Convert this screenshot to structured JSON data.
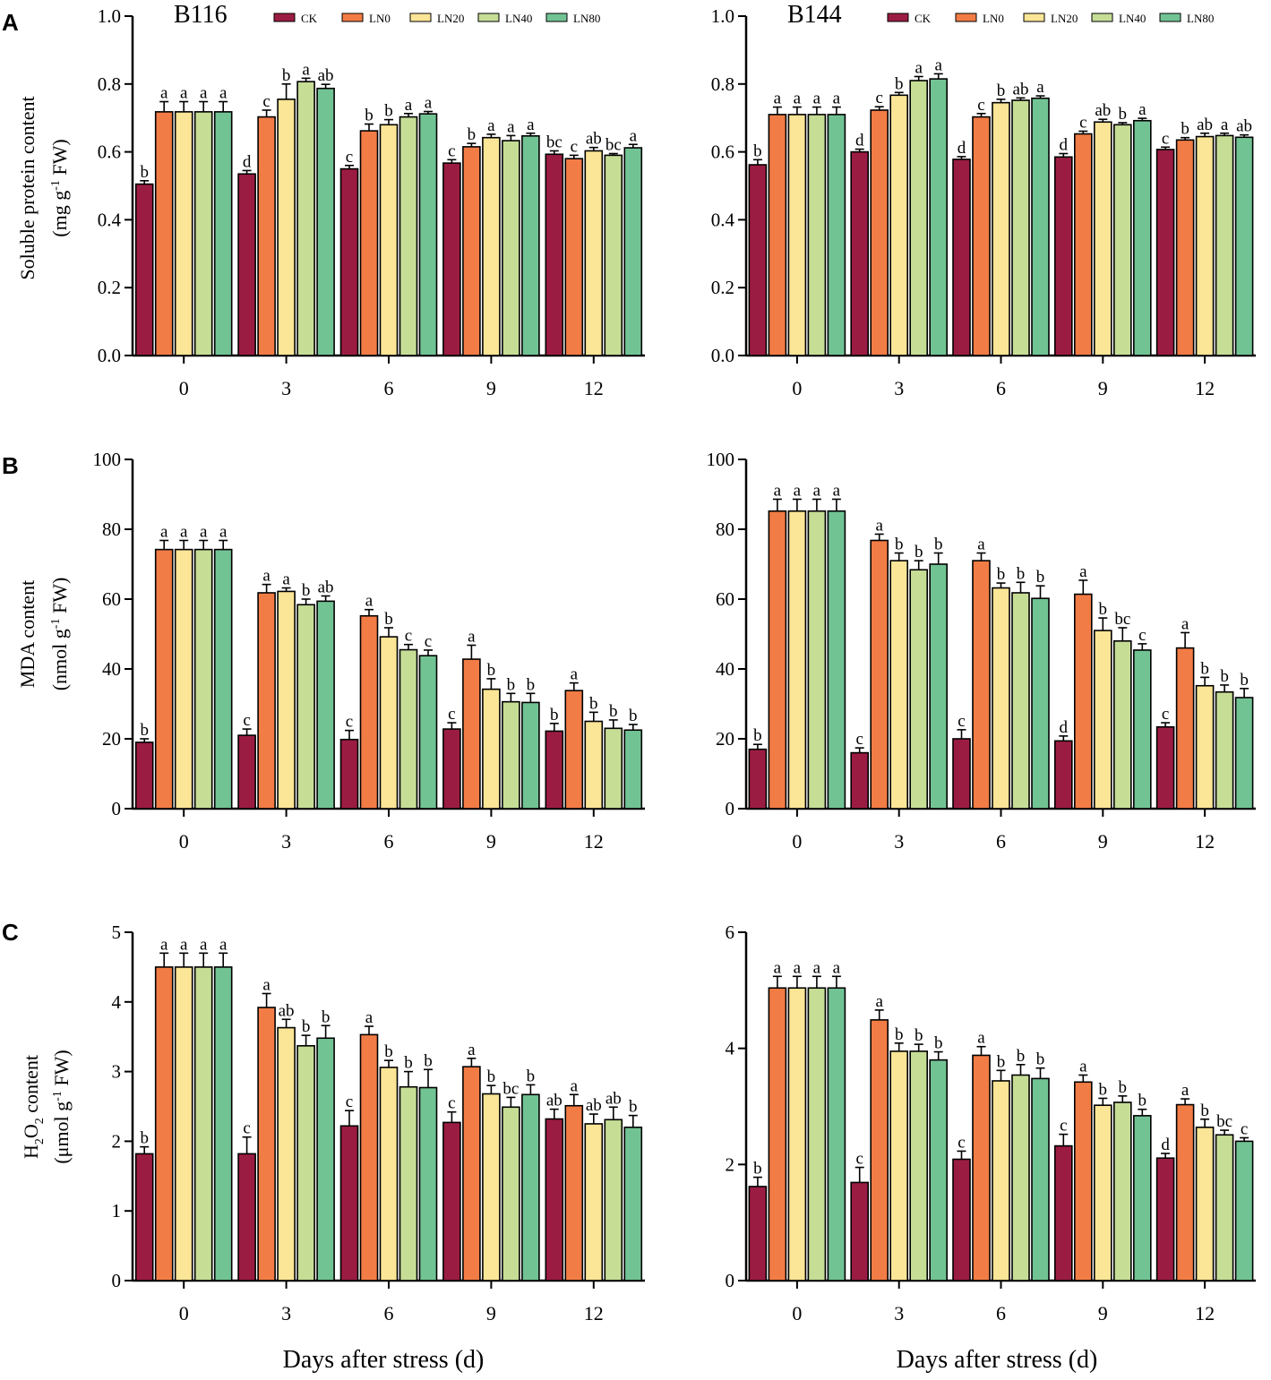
{
  "figure": {
    "xlabel": "Days after stress (d)",
    "series_names": [
      "CK",
      "LN0",
      "LN20",
      "LN40",
      "LN80"
    ],
    "series_colors": [
      "#9b1c42",
      "#f27c45",
      "#fbe596",
      "#c6dd96",
      "#72c394"
    ],
    "panel_letters": [
      "A",
      "B",
      "C"
    ],
    "ylabels": {
      "protein_1": "Soluble protein content",
      "protein_2_pre": "(mg g",
      "protein_2_sup": "-1",
      "protein_2_post": " FW)",
      "mda_1": "MDA content",
      "mda_2_pre": "(nmol g",
      "mda_2_sup": "-1",
      "mda_2_post": " FW)",
      "h2o2_1_a": "H",
      "h2o2_1_sub1": "2",
      "h2o2_1_b": "O",
      "h2o2_1_sub2": "2",
      "h2o2_1_c": " content",
      "h2o2_2_pre": "(μmol g",
      "h2o2_2_sup": "-1",
      "h2o2_2_post": " FW)"
    }
  },
  "chart_data": [
    {
      "id": "protein-b116",
      "type": "bar",
      "title": "B116",
      "legend": true,
      "categories": [
        "0",
        "3",
        "6",
        "9",
        "12"
      ],
      "ylim": [
        0,
        1.0
      ],
      "yticks": [
        "0.0",
        "0.2",
        "0.4",
        "0.6",
        "0.8",
        "1.0"
      ],
      "series": [
        {
          "name": "CK",
          "values": [
            0.505,
            0.535,
            0.55,
            0.567,
            0.593
          ],
          "errors": [
            0.01,
            0.01,
            0.01,
            0.01,
            0.01
          ],
          "letters": [
            "b",
            "d",
            "c",
            "c",
            "bc"
          ]
        },
        {
          "name": "LN0",
          "values": [
            0.718,
            0.703,
            0.662,
            0.615,
            0.58
          ],
          "errors": [
            0.03,
            0.02,
            0.02,
            0.01,
            0.01
          ],
          "letters": [
            "a",
            "c",
            "b",
            "b",
            "c"
          ]
        },
        {
          "name": "LN20",
          "values": [
            0.718,
            0.755,
            0.68,
            0.642,
            0.603
          ],
          "errors": [
            0.03,
            0.045,
            0.015,
            0.01,
            0.01
          ],
          "letters": [
            "a",
            "b",
            "b",
            "a",
            "ab"
          ]
        },
        {
          "name": "LN40",
          "values": [
            0.718,
            0.807,
            0.703,
            0.633,
            0.59
          ],
          "errors": [
            0.03,
            0.01,
            0.01,
            0.015,
            0.005
          ],
          "letters": [
            "a",
            "a",
            "a",
            "a",
            "bc"
          ]
        },
        {
          "name": "LN80",
          "values": [
            0.718,
            0.787,
            0.712,
            0.647,
            0.612
          ],
          "errors": [
            0.03,
            0.012,
            0.007,
            0.008,
            0.01
          ],
          "letters": [
            "a",
            "ab",
            "a",
            "a",
            "a"
          ]
        }
      ]
    },
    {
      "id": "protein-b144",
      "type": "bar",
      "title": "B144",
      "legend": true,
      "categories": [
        "0",
        "3",
        "6",
        "9",
        "12"
      ],
      "ylim": [
        0,
        1.0
      ],
      "yticks": [
        "0.0",
        "0.2",
        "0.4",
        "0.6",
        "0.8",
        "1.0"
      ],
      "series": [
        {
          "name": "CK",
          "values": [
            0.562,
            0.6,
            0.578,
            0.585,
            0.607
          ],
          "errors": [
            0.015,
            0.008,
            0.008,
            0.01,
            0.007
          ],
          "letters": [
            "b",
            "d",
            "d",
            "d",
            "c"
          ]
        },
        {
          "name": "LN0",
          "values": [
            0.71,
            0.723,
            0.703,
            0.653,
            0.635
          ],
          "errors": [
            0.022,
            0.01,
            0.01,
            0.008,
            0.007
          ],
          "letters": [
            "a",
            "c",
            "c",
            "c",
            "b"
          ]
        },
        {
          "name": "LN20",
          "values": [
            0.71,
            0.767,
            0.745,
            0.688,
            0.645
          ],
          "errors": [
            0.022,
            0.008,
            0.01,
            0.008,
            0.01
          ],
          "letters": [
            "a",
            "b",
            "b",
            "ab",
            "ab"
          ]
        },
        {
          "name": "LN40",
          "values": [
            0.71,
            0.81,
            0.752,
            0.68,
            0.648
          ],
          "errors": [
            0.022,
            0.012,
            0.007,
            0.006,
            0.007
          ],
          "letters": [
            "a",
            "a",
            "ab",
            "b",
            "a"
          ]
        },
        {
          "name": "LN80",
          "values": [
            0.71,
            0.815,
            0.758,
            0.692,
            0.643
          ],
          "errors": [
            0.022,
            0.015,
            0.007,
            0.007,
            0.007
          ],
          "letters": [
            "a",
            "a",
            "a",
            "a",
            "ab"
          ]
        }
      ]
    },
    {
      "id": "mda-b116",
      "type": "bar",
      "title": "",
      "legend": false,
      "categories": [
        "0",
        "3",
        "6",
        "9",
        "12"
      ],
      "ylim": [
        0,
        100
      ],
      "yticks": [
        "0",
        "20",
        "40",
        "60",
        "80",
        "100"
      ],
      "series": [
        {
          "name": "CK",
          "values": [
            19.0,
            21.0,
            19.8,
            22.8,
            22.2
          ],
          "errors": [
            1.0,
            1.8,
            2.6,
            1.8,
            2.2
          ],
          "letters": [
            "b",
            "c",
            "c",
            "c",
            "b"
          ]
        },
        {
          "name": "LN0",
          "values": [
            74.2,
            61.8,
            55.2,
            42.8,
            33.8
          ],
          "errors": [
            2.6,
            2.4,
            1.8,
            4.0,
            2.2
          ],
          "letters": [
            "a",
            "a",
            "a",
            "a",
            "a"
          ]
        },
        {
          "name": "LN20",
          "values": [
            74.2,
            62.2,
            49.2,
            34.2,
            25.0
          ],
          "errors": [
            2.6,
            1.0,
            2.6,
            3.0,
            2.6
          ],
          "letters": [
            "a",
            "a",
            "b",
            "b",
            "b"
          ]
        },
        {
          "name": "LN40",
          "values": [
            74.2,
            58.4,
            45.5,
            30.6,
            23.0
          ],
          "errors": [
            2.6,
            1.6,
            1.5,
            2.4,
            2.4
          ],
          "letters": [
            "a",
            "b",
            "c",
            "b",
            "b"
          ]
        },
        {
          "name": "LN80",
          "values": [
            74.2,
            59.4,
            43.8,
            30.4,
            22.5
          ],
          "errors": [
            2.6,
            1.5,
            1.6,
            2.6,
            1.6
          ],
          "letters": [
            "a",
            "ab",
            "c",
            "b",
            "b"
          ]
        }
      ]
    },
    {
      "id": "mda-b144",
      "type": "bar",
      "title": "",
      "legend": false,
      "categories": [
        "0",
        "3",
        "6",
        "9",
        "12"
      ],
      "ylim": [
        0,
        100
      ],
      "yticks": [
        "0",
        "20",
        "40",
        "60",
        "80",
        "100"
      ],
      "series": [
        {
          "name": "CK",
          "values": [
            17.0,
            16.0,
            20.0,
            19.4,
            23.4
          ],
          "errors": [
            1.4,
            1.4,
            2.6,
            1.4,
            1.2
          ],
          "letters": [
            "b",
            "c",
            "c",
            "d",
            "c"
          ]
        },
        {
          "name": "LN0",
          "values": [
            85.2,
            76.8,
            71.0,
            61.4,
            46.0
          ],
          "errors": [
            3.4,
            1.8,
            2.2,
            4.0,
            4.4
          ],
          "letters": [
            "a",
            "a",
            "a",
            "a",
            "a"
          ]
        },
        {
          "name": "LN20",
          "values": [
            85.2,
            71.0,
            63.2,
            51.0,
            35.2
          ],
          "errors": [
            3.4,
            2.2,
            1.4,
            3.6,
            2.4
          ],
          "letters": [
            "a",
            "b",
            "b",
            "b",
            "b"
          ]
        },
        {
          "name": "LN40",
          "values": [
            85.2,
            68.4,
            61.8,
            48.0,
            33.4
          ],
          "errors": [
            3.4,
            2.6,
            3.0,
            3.8,
            2.0
          ],
          "letters": [
            "a",
            "b",
            "b",
            "bc",
            "b"
          ]
        },
        {
          "name": "LN80",
          "values": [
            85.2,
            70.0,
            60.2,
            45.4,
            31.8
          ],
          "errors": [
            3.4,
            3.2,
            3.6,
            1.8,
            2.6
          ],
          "letters": [
            "a",
            "b",
            "b",
            "c",
            "b"
          ]
        }
      ]
    },
    {
      "id": "h2o2-b116",
      "type": "bar",
      "title": "",
      "legend": false,
      "categories": [
        "0",
        "3",
        "6",
        "9",
        "12"
      ],
      "ylim": [
        0,
        5
      ],
      "yticks": [
        "0",
        "1",
        "2",
        "3",
        "4",
        "5"
      ],
      "series": [
        {
          "name": "CK",
          "values": [
            1.82,
            1.82,
            2.22,
            2.27,
            2.32
          ],
          "errors": [
            0.1,
            0.24,
            0.22,
            0.15,
            0.14
          ],
          "letters": [
            "b",
            "c",
            "c",
            "c",
            "ab"
          ]
        },
        {
          "name": "LN0",
          "values": [
            4.5,
            3.92,
            3.53,
            3.07,
            2.51
          ],
          "errors": [
            0.2,
            0.2,
            0.12,
            0.12,
            0.16
          ],
          "letters": [
            "a",
            "a",
            "a",
            "a",
            "a"
          ]
        },
        {
          "name": "LN20",
          "values": [
            4.5,
            3.63,
            3.06,
            2.68,
            2.25
          ],
          "errors": [
            0.2,
            0.12,
            0.1,
            0.12,
            0.14
          ],
          "letters": [
            "a",
            "ab",
            "b",
            "b",
            "ab"
          ]
        },
        {
          "name": "LN40",
          "values": [
            4.5,
            3.37,
            2.78,
            2.49,
            2.31
          ],
          "errors": [
            0.2,
            0.15,
            0.22,
            0.14,
            0.18
          ],
          "letters": [
            "a",
            "b",
            "b",
            "bc",
            "ab"
          ]
        },
        {
          "name": "LN80",
          "values": [
            4.5,
            3.48,
            2.77,
            2.67,
            2.2
          ],
          "errors": [
            0.2,
            0.18,
            0.26,
            0.14,
            0.17
          ],
          "letters": [
            "a",
            "b",
            "b",
            "b",
            "b"
          ]
        }
      ]
    },
    {
      "id": "h2o2-b144",
      "type": "bar",
      "title": "",
      "legend": false,
      "categories": [
        "0",
        "3",
        "6",
        "9",
        "12"
      ],
      "ylim": [
        0,
        6
      ],
      "yticks": [
        "0",
        "2",
        "4",
        "6"
      ],
      "series": [
        {
          "name": "CK",
          "values": [
            1.62,
            1.69,
            2.09,
            2.32,
            2.11
          ],
          "errors": [
            0.16,
            0.26,
            0.14,
            0.2,
            0.08
          ],
          "letters": [
            "b",
            "c",
            "c",
            "c",
            "d"
          ]
        },
        {
          "name": "LN0",
          "values": [
            5.04,
            4.49,
            3.88,
            3.42,
            3.03
          ],
          "errors": [
            0.2,
            0.17,
            0.15,
            0.12,
            0.1
          ],
          "letters": [
            "a",
            "a",
            "a",
            "a",
            "a"
          ]
        },
        {
          "name": "LN20",
          "values": [
            5.04,
            3.95,
            3.44,
            3.02,
            2.64
          ],
          "errors": [
            0.2,
            0.14,
            0.18,
            0.12,
            0.14
          ],
          "letters": [
            "a",
            "b",
            "b",
            "b",
            "b"
          ]
        },
        {
          "name": "LN40",
          "values": [
            5.04,
            3.95,
            3.54,
            3.07,
            2.51
          ],
          "errors": [
            0.2,
            0.12,
            0.18,
            0.11,
            0.08
          ],
          "letters": [
            "a",
            "b",
            "b",
            "b",
            "bc"
          ]
        },
        {
          "name": "LN80",
          "values": [
            5.04,
            3.8,
            3.48,
            2.84,
            2.4
          ],
          "errors": [
            0.2,
            0.14,
            0.18,
            0.11,
            0.06
          ],
          "letters": [
            "a",
            "b",
            "b",
            "b",
            "c"
          ]
        }
      ]
    }
  ]
}
